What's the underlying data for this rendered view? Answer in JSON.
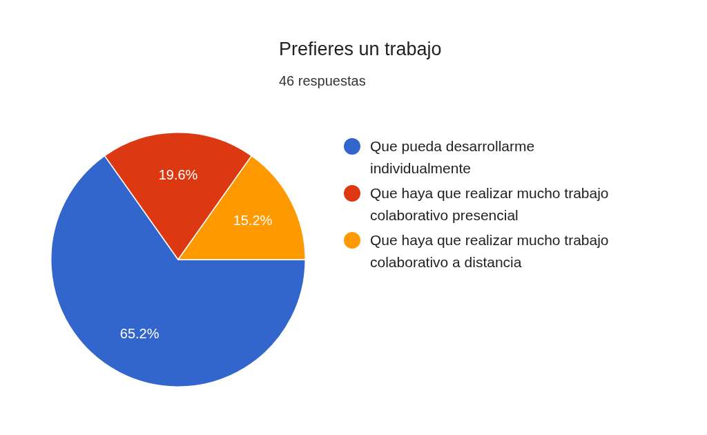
{
  "chart_data": {
    "type": "pie",
    "title": "Prefieres un trabajo",
    "subtitle": "46 respuestas",
    "categories": [
      "Que pueda desarrollarme individualmente",
      "Que haya que realizar mucho trabajo colaborativo presencial",
      "Que haya que realizar mucho trabajo colaborativo a distancia"
    ],
    "values": [
      65.2,
      19.6,
      15.2
    ],
    "colors": [
      "#3366cc",
      "#dc3912",
      "#ff9900"
    ],
    "value_labels": [
      "65.2%",
      "19.6%",
      "15.2%"
    ],
    "legend": "right"
  }
}
